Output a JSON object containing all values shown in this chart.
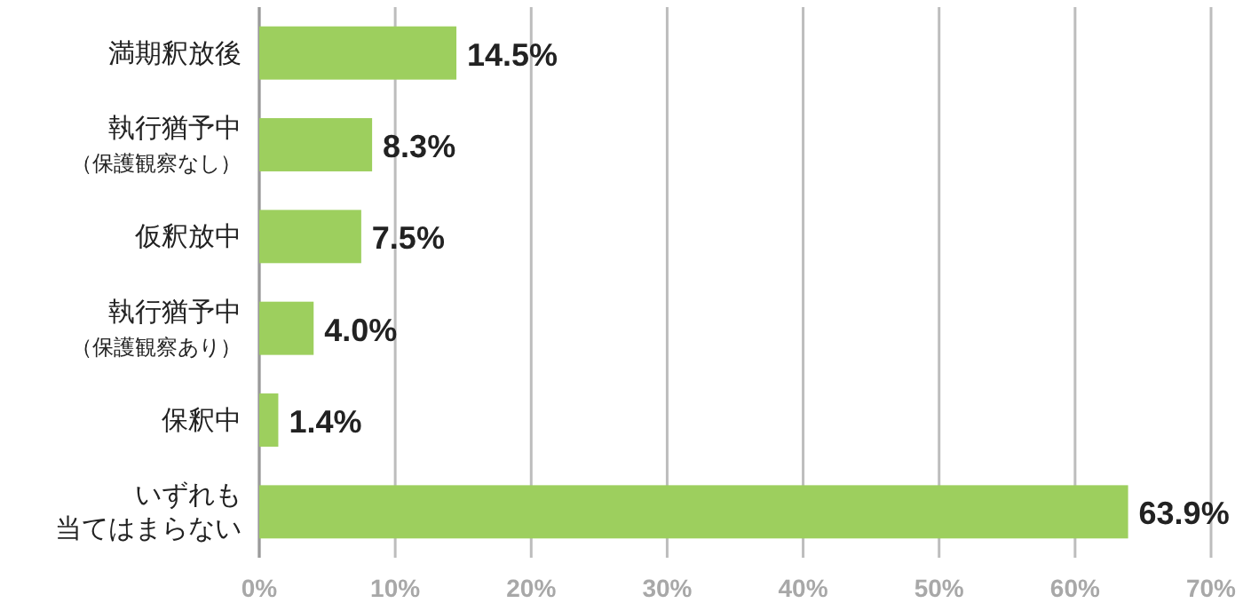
{
  "chart_data": {
    "type": "bar",
    "orientation": "horizontal",
    "categories": [
      "満期釈放後",
      "執行猶予中（保護観察なし）",
      "仮釈放中",
      "執行猶予中（保護観察あり）",
      "保釈中",
      "いずれも当てはまらない"
    ],
    "values": [
      14.5,
      8.3,
      7.5,
      4.0,
      1.4,
      63.9
    ],
    "value_labels": [
      "14.5%",
      "8.3%",
      "7.5%",
      "4.0%",
      "1.4%",
      "63.9%"
    ],
    "color": "#9dcf5e",
    "xlim": [
      0,
      70
    ],
    "xticks": [
      {
        "value": 0,
        "label": "0%"
      },
      {
        "value": 10,
        "label": "10%"
      },
      {
        "value": 20,
        "label": "20%"
      },
      {
        "value": 30,
        "label": "30%"
      },
      {
        "value": 40,
        "label": "40%"
      },
      {
        "value": 50,
        "label": "50%"
      },
      {
        "value": 60,
        "label": "60%"
      },
      {
        "value": 70,
        "label": "70%"
      }
    ],
    "grid": "x"
  }
}
